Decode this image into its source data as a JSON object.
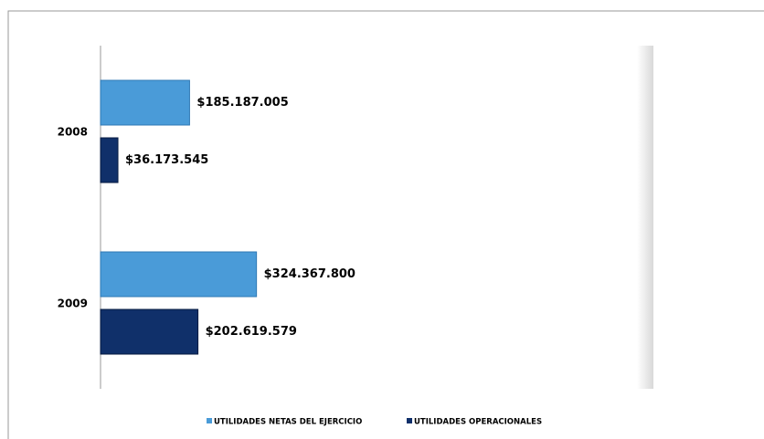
{
  "chart_data": {
    "type": "hbar",
    "categories": [
      "2008",
      "2009"
    ],
    "series": [
      {
        "name": "UTILIDADES NETAS DEL EJERCICIO",
        "color": "#4a9bd8",
        "values": [
          185187005,
          324367800
        ],
        "value_labels": [
          "$185.187.005",
          "$324.367.800"
        ]
      },
      {
        "name": "UTILIDADES OPERACIONALES",
        "color": "#10306a",
        "values": [
          36173545,
          202619579
        ],
        "value_labels": [
          "$36.173.545",
          "$202.619.579"
        ]
      }
    ],
    "xlim": [
      0,
      1150000000
    ],
    "legend": "bottom"
  }
}
